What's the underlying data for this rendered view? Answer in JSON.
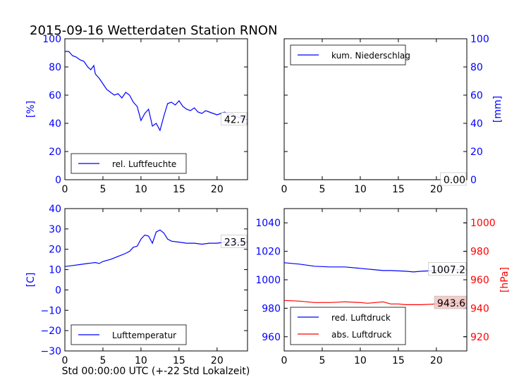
{
  "figure": {
    "title": "2015-09-16 Wetterdaten Station RNON",
    "xlabel": "Std 00:00:00 UTC (+-22 Std Lokalzeit)",
    "colors": {
      "blue": "#0000ff",
      "red": "#ff0000",
      "axes": "#000000",
      "highlight_fill": "#f4c4c4"
    }
  },
  "chart_data": [
    {
      "id": "humidity",
      "type": "line",
      "ylabel": "[%]",
      "ylim": [
        0,
        100
      ],
      "xlim": [
        0,
        24
      ],
      "xticks": [
        0,
        5,
        10,
        15,
        20
      ],
      "yticks": [
        0,
        20,
        40,
        60,
        80,
        100
      ],
      "legend": {
        "placement": "lower-left",
        "entries": [
          {
            "label": "rel. Luftfeuchte",
            "color": "#0000ff"
          }
        ]
      },
      "last_value": "42.7",
      "series": [
        {
          "name": "rel. Luftfeuchte",
          "color": "#0000ff",
          "axis": "left",
          "x": [
            0,
            0.5,
            1,
            1.5,
            2,
            2.5,
            3,
            3.4,
            3.8,
            4,
            4.5,
            5,
            5.5,
            6,
            6.5,
            7,
            7.5,
            8,
            8.5,
            9,
            9.5,
            10,
            10.5,
            11,
            11.5,
            12,
            12.5,
            13,
            13.5,
            14,
            14.5,
            15,
            15.5,
            16,
            16.5,
            17,
            17.5,
            18,
            18.5,
            19,
            19.5,
            20,
            20.5,
            21,
            21.5,
            22,
            22.5,
            23,
            23.5,
            24
          ],
          "y": [
            91,
            91,
            88,
            87,
            85,
            84,
            80,
            78,
            81,
            75,
            72,
            68,
            64,
            62,
            60,
            61,
            58,
            62,
            60,
            55,
            52,
            42,
            47,
            50,
            38,
            40,
            35,
            45,
            54,
            55,
            53,
            56,
            52,
            50,
            49,
            51,
            48,
            47,
            49,
            48,
            47,
            46,
            47,
            48,
            46,
            47,
            45,
            44,
            43,
            42.7
          ]
        }
      ]
    },
    {
      "id": "precipitation",
      "type": "line",
      "ylabel": "[mm]",
      "ylim": [
        0,
        100
      ],
      "xlim": [
        0,
        24
      ],
      "xticks": [
        0,
        5,
        10,
        15,
        20
      ],
      "yticks": [
        0,
        20,
        40,
        60,
        80,
        100
      ],
      "legend": {
        "placement": "top-left",
        "entries": [
          {
            "label": "kum. Niederschlag",
            "color": "#0000ff"
          }
        ]
      },
      "last_value": "0.00",
      "series": [
        {
          "name": "kum. Niederschlag",
          "color": "#0000ff",
          "axis": "right",
          "x": [
            0,
            24
          ],
          "y": [
            0,
            0
          ]
        }
      ]
    },
    {
      "id": "temperature",
      "type": "line",
      "ylabel": "[C]",
      "ylim": [
        -30,
        40
      ],
      "xlim": [
        0,
        24
      ],
      "xticks": [
        0,
        5,
        10,
        15,
        20
      ],
      "yticks": [
        -30,
        -20,
        -10,
        0,
        10,
        20,
        30,
        40
      ],
      "legend": {
        "placement": "lower-left",
        "entries": [
          {
            "label": "Lufttemperatur",
            "color": "#0000ff"
          }
        ]
      },
      "last_value": "23.5",
      "series": [
        {
          "name": "Lufttemperatur",
          "color": "#0000ff",
          "axis": "left",
          "x": [
            0,
            1,
            2,
            3,
            4,
            4.5,
            5,
            6,
            7,
            8,
            8.5,
            9,
            9.5,
            10,
            10.5,
            11,
            11.5,
            12,
            12.5,
            13,
            13.5,
            14,
            15,
            16,
            17,
            18,
            19,
            20,
            21,
            22,
            23,
            24
          ],
          "y": [
            11.5,
            12,
            12.5,
            13,
            13.5,
            13,
            14,
            15,
            16.5,
            18,
            19,
            21,
            21.5,
            25,
            27,
            26.5,
            23,
            28.5,
            29.5,
            28,
            25,
            24,
            23.5,
            23,
            23,
            22.5,
            23,
            23,
            23.5,
            23,
            23.5,
            23.5
          ]
        }
      ]
    },
    {
      "id": "pressure",
      "type": "line",
      "ylim": [
        950,
        1050
      ],
      "y2label": "[hPa]",
      "y2lim": [
        910,
        1010
      ],
      "xlim": [
        0,
        24
      ],
      "xticks": [
        0,
        5,
        10,
        15,
        20
      ],
      "yticks": [
        960,
        980,
        1000,
        1020,
        1040
      ],
      "y2ticks": [
        920,
        940,
        960,
        980,
        1000
      ],
      "legend": {
        "placement": "lower-left",
        "entries": [
          {
            "label": "red. Luftdruck",
            "color": "#0000ff"
          },
          {
            "label": "abs. Luftdruck",
            "color": "#ff0000"
          }
        ]
      },
      "last_value_left": "1007.2",
      "last_value_right": "943.6",
      "series": [
        {
          "name": "red. Luftdruck",
          "color": "#0000ff",
          "axis": "left",
          "x": [
            0,
            2,
            4,
            6,
            8,
            10,
            12,
            13,
            14,
            16,
            17,
            18,
            20,
            22,
            24
          ],
          "y": [
            1012,
            1011,
            1009.5,
            1009,
            1009,
            1008,
            1007,
            1006.5,
            1006.5,
            1006,
            1005.5,
            1006,
            1006.5,
            1007,
            1007.2
          ]
        },
        {
          "name": "abs. Luftdruck",
          "color": "#ff0000",
          "axis": "right",
          "x": [
            0,
            2,
            4,
            6,
            8,
            10,
            11,
            12,
            13,
            14,
            15,
            16,
            17,
            18,
            20,
            22,
            24
          ],
          "y": [
            945.5,
            945,
            944,
            944,
            944.5,
            944,
            943.5,
            944,
            944.5,
            943,
            943,
            942.5,
            942.5,
            942.5,
            943,
            943.5,
            943.6
          ]
        }
      ]
    }
  ]
}
